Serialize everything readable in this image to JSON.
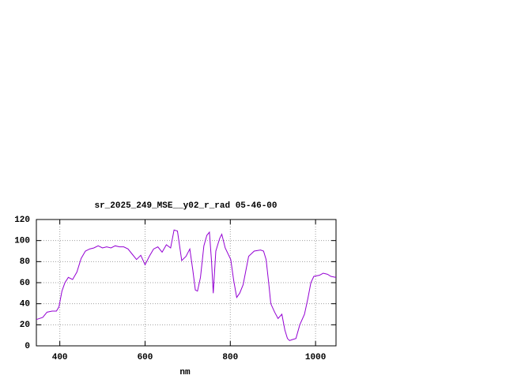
{
  "chart_data": {
    "type": "line",
    "title": "sr_2025_249_MSE__y02_r_rad 05-46-00",
    "xlabel": "nm",
    "x": [
      345,
      360,
      370,
      382,
      392,
      398,
      405,
      412,
      420,
      430,
      440,
      450,
      460,
      470,
      480,
      490,
      500,
      510,
      520,
      530,
      540,
      550,
      560,
      570,
      580,
      590,
      600,
      610,
      620,
      630,
      640,
      650,
      660,
      668,
      676,
      686,
      696,
      705,
      712,
      718,
      723,
      730,
      738,
      745,
      751,
      756,
      760,
      766,
      775,
      780,
      788,
      801,
      808,
      815,
      822,
      830,
      843,
      856,
      871,
      878,
      884,
      890,
      895,
      904,
      912,
      921,
      928,
      934,
      939,
      946,
      954,
      963,
      974,
      982,
      989,
      996,
      1009,
      1018,
      1028,
      1036,
      1048
    ],
    "series": [
      {
        "name": "sr_2025_249_MSE__y02_r_rad",
        "color": "#9400d3",
        "values": [
          25,
          27,
          32,
          33,
          33,
          37,
          52,
          60,
          65,
          63,
          70,
          83,
          90,
          92,
          93,
          95,
          93,
          94,
          93,
          95,
          94,
          94,
          92,
          87,
          82,
          86,
          77,
          85,
          92,
          94,
          89,
          96,
          93,
          110,
          109,
          81,
          85,
          92,
          72,
          53,
          52,
          65,
          95,
          105,
          108,
          80,
          50,
          90,
          102,
          106,
          93,
          82,
          62,
          46,
          50,
          58,
          85,
          90,
          91,
          90,
          82,
          60,
          40,
          32,
          26,
          30,
          15,
          7,
          5,
          6,
          7,
          20,
          30,
          45,
          60,
          66,
          67,
          69,
          68,
          66,
          65
        ]
      }
    ],
    "xlim": [
      345,
      1048
    ],
    "ylim": [
      0,
      120
    ],
    "xticks": [
      400,
      600,
      800,
      1000
    ],
    "yticks": [
      0,
      20,
      40,
      60,
      80,
      100,
      120
    ],
    "grid": true
  }
}
